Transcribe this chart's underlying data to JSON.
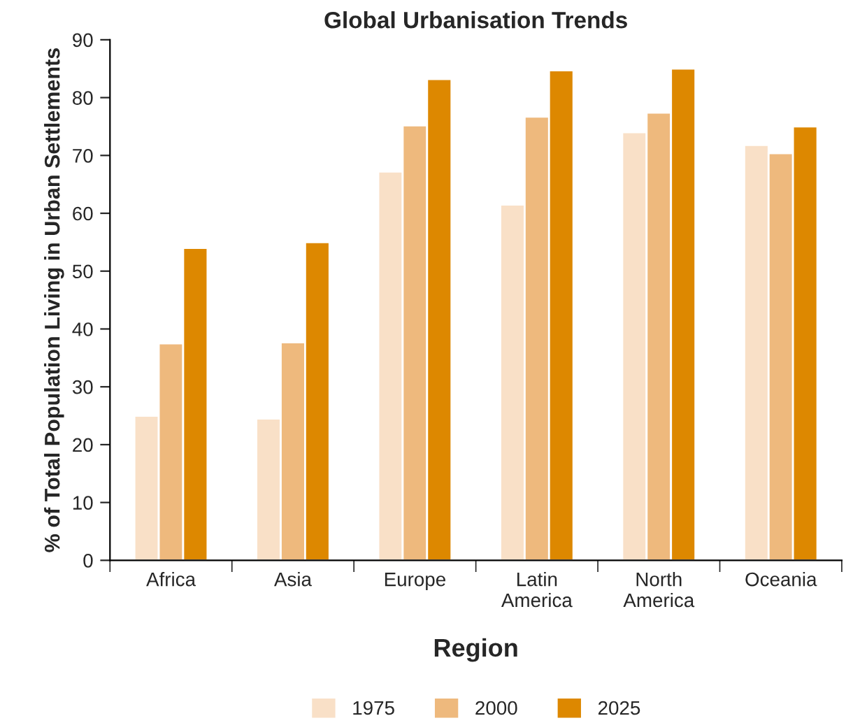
{
  "chart_data": {
    "type": "bar",
    "title": "Global Urbanisation Trends",
    "xlabel": "Region",
    "ylabel": "% of Total Population Living in Urban Settlements",
    "categories": [
      "Africa",
      "Asia",
      "Europe",
      "Latin\nAmerica",
      "North\nAmerica",
      "Oceania"
    ],
    "series": [
      {
        "name": "1975",
        "color": "#f9e0c7",
        "values": [
          25,
          24.5,
          67.2,
          61.5,
          74,
          71.8
        ]
      },
      {
        "name": "2000",
        "color": "#eeb97d",
        "values": [
          37.5,
          37.7,
          75.2,
          76.7,
          77.4,
          70.4
        ]
      },
      {
        "name": "2025",
        "color": "#dd8800",
        "values": [
          54,
          55,
          83.2,
          84.7,
          85,
          75
        ]
      }
    ],
    "ylim": [
      0,
      90
    ],
    "yticks": [
      0,
      10,
      20,
      30,
      40,
      50,
      60,
      70,
      80,
      90
    ],
    "grid": false,
    "legend": "bottom"
  }
}
